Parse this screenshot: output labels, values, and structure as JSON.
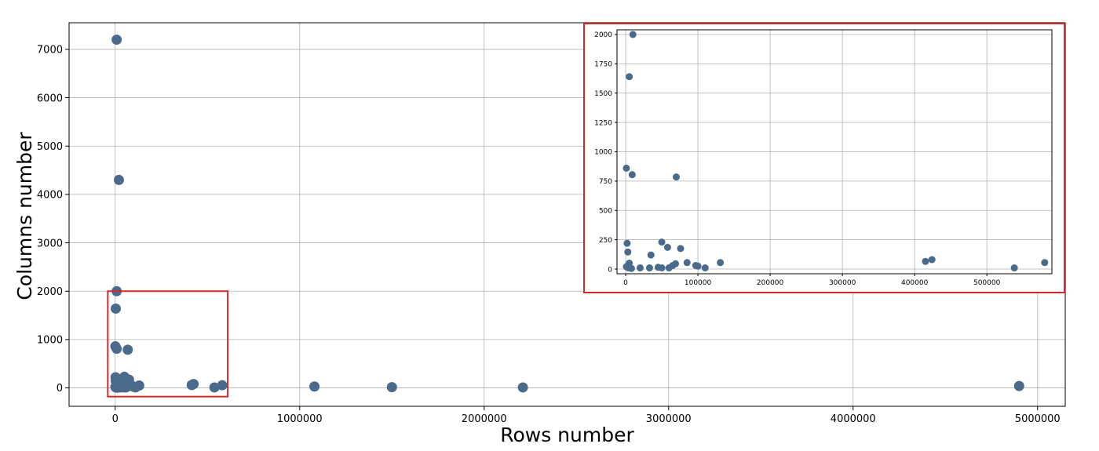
{
  "colors": {
    "marker": "#4a6a8c",
    "grid": "#b0b0b0",
    "axes": "#000000",
    "highlight": "#d62728"
  },
  "chart_data": [
    {
      "id": "main",
      "type": "scatter",
      "title": "",
      "xlabel": "Rows number",
      "ylabel": "Columns number",
      "xlim": [
        -250000,
        5150000
      ],
      "ylim": [
        -380,
        7550
      ],
      "xticks": [
        0,
        1000000,
        2000000,
        3000000,
        4000000,
        5000000
      ],
      "xtick_labels": [
        "0",
        "1000000",
        "2000000",
        "3000000",
        "4000000",
        "5000000"
      ],
      "yticks": [
        0,
        1000,
        2000,
        3000,
        4000,
        5000,
        6000,
        7000
      ],
      "ytick_labels": [
        "0",
        "1000",
        "2000",
        "3000",
        "4000",
        "5000",
        "6000",
        "7000"
      ],
      "grid": true,
      "zoom_region": {
        "x": [
          -40000,
          610000
        ],
        "y": [
          -180,
          2000
        ]
      },
      "points": [
        {
          "x": 8000,
          "y": 7200
        },
        {
          "x": 20000,
          "y": 4300
        },
        {
          "x": 8000,
          "y": 2000
        },
        {
          "x": 3000,
          "y": 1640
        },
        {
          "x": 1000,
          "y": 860
        },
        {
          "x": 8000,
          "y": 810
        },
        {
          "x": 68000,
          "y": 790
        },
        {
          "x": 2000,
          "y": 220
        },
        {
          "x": 3000,
          "y": 145
        },
        {
          "x": 5000,
          "y": 50
        },
        {
          "x": 1000,
          "y": 20
        },
        {
          "x": 3000,
          "y": 10
        },
        {
          "x": 8000,
          "y": 5
        },
        {
          "x": 20000,
          "y": 10
        },
        {
          "x": 33000,
          "y": 120
        },
        {
          "x": 33000,
          "y": 10
        },
        {
          "x": 45000,
          "y": 15
        },
        {
          "x": 50000,
          "y": 230
        },
        {
          "x": 50000,
          "y": 10
        },
        {
          "x": 55000,
          "y": 180
        },
        {
          "x": 58000,
          "y": 10
        },
        {
          "x": 65000,
          "y": 30
        },
        {
          "x": 68000,
          "y": 40
        },
        {
          "x": 75000,
          "y": 170
        },
        {
          "x": 85000,
          "y": 55
        },
        {
          "x": 97000,
          "y": 30
        },
        {
          "x": 100000,
          "y": 25
        },
        {
          "x": 110000,
          "y": 10
        },
        {
          "x": 130000,
          "y": 50
        },
        {
          "x": 415000,
          "y": 60
        },
        {
          "x": 425000,
          "y": 80
        },
        {
          "x": 538000,
          "y": 10
        },
        {
          "x": 580000,
          "y": 55
        },
        {
          "x": 1080000,
          "y": 30
        },
        {
          "x": 1500000,
          "y": 15
        },
        {
          "x": 2210000,
          "y": 10
        },
        {
          "x": 4900000,
          "y": 40
        }
      ]
    },
    {
      "id": "inset",
      "type": "scatter",
      "title": "",
      "xlabel": "",
      "ylabel": "",
      "xlim": [
        -12000,
        590000
      ],
      "ylim": [
        -40,
        2040
      ],
      "xticks": [
        0,
        100000,
        200000,
        300000,
        400000,
        500000
      ],
      "xtick_labels": [
        "0",
        "100000",
        "200000",
        "300000",
        "400000",
        "500000"
      ],
      "yticks": [
        0,
        250,
        500,
        750,
        1000,
        1250,
        1500,
        1750,
        2000
      ],
      "ytick_labels": [
        "0",
        "250",
        "500",
        "750",
        "1000",
        "1250",
        "1500",
        "1750",
        "2000"
      ],
      "grid": true,
      "points": [
        {
          "x": 10000,
          "y": 2000
        },
        {
          "x": 5000,
          "y": 1640
        },
        {
          "x": 1000,
          "y": 860
        },
        {
          "x": 9000,
          "y": 805
        },
        {
          "x": 70000,
          "y": 785
        },
        {
          "x": 2000,
          "y": 220
        },
        {
          "x": 3000,
          "y": 145
        },
        {
          "x": 5000,
          "y": 50
        },
        {
          "x": 1000,
          "y": 20
        },
        {
          "x": 4000,
          "y": 10
        },
        {
          "x": 8000,
          "y": 5
        },
        {
          "x": 20000,
          "y": 10
        },
        {
          "x": 35000,
          "y": 120
        },
        {
          "x": 33000,
          "y": 10
        },
        {
          "x": 45000,
          "y": 15
        },
        {
          "x": 50000,
          "y": 230
        },
        {
          "x": 50000,
          "y": 10
        },
        {
          "x": 58000,
          "y": 185
        },
        {
          "x": 60000,
          "y": 10
        },
        {
          "x": 65000,
          "y": 30
        },
        {
          "x": 69000,
          "y": 45
        },
        {
          "x": 76000,
          "y": 175
        },
        {
          "x": 85000,
          "y": 55
        },
        {
          "x": 97000,
          "y": 30
        },
        {
          "x": 100000,
          "y": 25
        },
        {
          "x": 110000,
          "y": 10
        },
        {
          "x": 131000,
          "y": 55
        },
        {
          "x": 415000,
          "y": 65
        },
        {
          "x": 424000,
          "y": 80
        },
        {
          "x": 538000,
          "y": 10
        },
        {
          "x": 580000,
          "y": 55
        }
      ]
    }
  ]
}
